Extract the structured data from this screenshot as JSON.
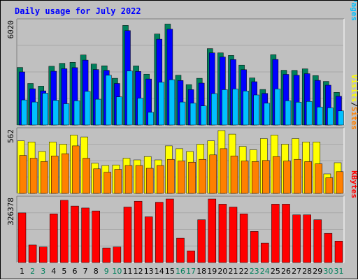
{
  "chart_data": {
    "type": "bar",
    "title": "Daily usage for July 2022",
    "categories": [
      "1",
      "2",
      "3",
      "4",
      "5",
      "6",
      "7",
      "8",
      "9",
      "10",
      "11",
      "12",
      "13",
      "14",
      "15",
      "16",
      "17",
      "18",
      "19",
      "20",
      "21",
      "22",
      "23",
      "24",
      "25",
      "26",
      "27",
      "28",
      "29",
      "30",
      "31"
    ],
    "weekend_days": [
      "2",
      "3",
      "9",
      "10",
      "16",
      "17",
      "23",
      "24",
      "30",
      "31"
    ],
    "panels": [
      {
        "name": "hits-files-pages",
        "max_label": "6020",
        "ymax": 6020,
        "side_labels": [
          "Pages",
          "/",
          "Files",
          "/",
          "Hits"
        ],
        "series": [
          {
            "name": "Hits",
            "color": "#00805c",
            "values": [
              3350,
              2420,
              2260,
              3420,
              3590,
              3650,
              4080,
              3550,
              3450,
              2720,
              5800,
              3440,
              2960,
              5300,
              5880,
              2900,
              2350,
              2720,
              4450,
              4200,
              4050,
              3490,
              2740,
              2070,
              4090,
              3190,
              3180,
              3270,
              2880,
              2540,
              1900
            ]
          },
          {
            "name": "Files",
            "color": "#0000ff",
            "values": [
              3090,
              2110,
              1990,
              3130,
              3280,
              3340,
              3780,
              3230,
              3180,
              2420,
              5500,
              3120,
              2680,
              5000,
              5580,
              2590,
              2060,
              2440,
              4200,
              3960,
              3810,
              3220,
              2520,
              1840,
              3820,
              2950,
              2900,
              2990,
              2600,
              2320,
              1670
            ]
          },
          {
            "name": "Pages",
            "color": "#00c0ff",
            "values": [
              1460,
              1340,
              1850,
              1440,
              1240,
              1410,
              1960,
              1500,
              2900,
              1640,
              3150,
              1560,
              740,
              2490,
              2640,
              1340,
              1270,
              1110,
              1830,
              2060,
              2100,
              1980,
              1750,
              1270,
              2100,
              1410,
              1330,
              1370,
              1050,
              1000,
              820
            ]
          }
        ]
      },
      {
        "name": "visits-sites",
        "max_label": "562",
        "ymax": 562,
        "side_labels": [
          "Sites",
          "/",
          "Visits"
        ],
        "series": [
          {
            "name": "Visits",
            "color": "#ffff00",
            "values": [
              470,
              460,
              375,
              460,
              440,
              522,
              505,
              270,
              250,
              255,
              315,
              300,
              330,
              300,
              425,
              400,
              375,
              440,
              470,
              562,
              530,
              420,
              390,
              490,
              522,
              440,
              490,
              460,
              460,
              175,
              275
            ]
          },
          {
            "name": "Sites",
            "color": "#ff8000",
            "values": [
              340,
              315,
              285,
              335,
              355,
              425,
              315,
              220,
              190,
              215,
              250,
              250,
              225,
              250,
              305,
              290,
              280,
              305,
              345,
              400,
              335,
              290,
              285,
              295,
              330,
              290,
              305,
              285,
              265,
              140,
              195
            ]
          }
        ]
      },
      {
        "name": "kbytes",
        "max_label": "326378",
        "ymax": 326378,
        "side_labels": [
          "KBytes"
        ],
        "series": [
          {
            "name": "KBytes",
            "color": "#ff0000",
            "values": [
              255000,
              90000,
              80000,
              250000,
              320000,
              290000,
              280000,
              265000,
              75000,
              80000,
              285000,
              315000,
              235000,
              310000,
              326378,
              125000,
              60000,
              220000,
              326378,
              300000,
              285000,
              250000,
              160000,
              100000,
              300000,
              300000,
              245000,
              245000,
              220000,
              150000,
              110000
            ]
          }
        ]
      }
    ]
  }
}
